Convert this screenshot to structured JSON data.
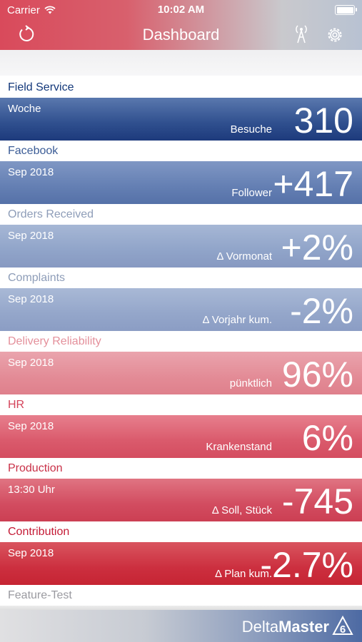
{
  "status_bar": {
    "carrier": "Carrier",
    "time": "10:02 AM"
  },
  "nav": {
    "title": "Dashboard",
    "icons": [
      "refresh-icon",
      "antenna-icon",
      "gear-icon"
    ]
  },
  "sections": [
    {
      "label": "Field Service",
      "period": "Woche",
      "caption": "Besuche",
      "value": "310"
    },
    {
      "label": "Facebook",
      "period": "Sep 2018",
      "caption": "Follower",
      "value": "+417"
    },
    {
      "label": "Orders Received",
      "period": "Sep 2018",
      "caption": "Δ Vormonat",
      "value": "+2%"
    },
    {
      "label": "Complaints",
      "period": "Sep 2018",
      "caption": "Δ Vorjahr kum.",
      "value": "-2%"
    },
    {
      "label": "Delivery Reliability",
      "period": "Sep 2018",
      "caption": "pünktlich",
      "value": "96%"
    },
    {
      "label": "HR",
      "period": "Sep 2018",
      "caption": "Krankenstand",
      "value": "6%"
    },
    {
      "label": "Production",
      "period": "13:30 Uhr",
      "caption": "Δ Soll, Stück",
      "value": "-745"
    },
    {
      "label": "Contribution",
      "period": "Sep 2018",
      "caption": "Δ Plan kum.",
      "value": "-2.7%"
    },
    {
      "label": "Feature-Test"
    }
  ],
  "footer": {
    "brand_light": "Delta",
    "brand_bold": "Master",
    "version": "6"
  },
  "colors": {
    "header_left": "#d94a5b",
    "header_right": "#b8c2d2",
    "tile_blue_dark": "#1d3a7c",
    "tile_red_dark": "#c62433"
  }
}
